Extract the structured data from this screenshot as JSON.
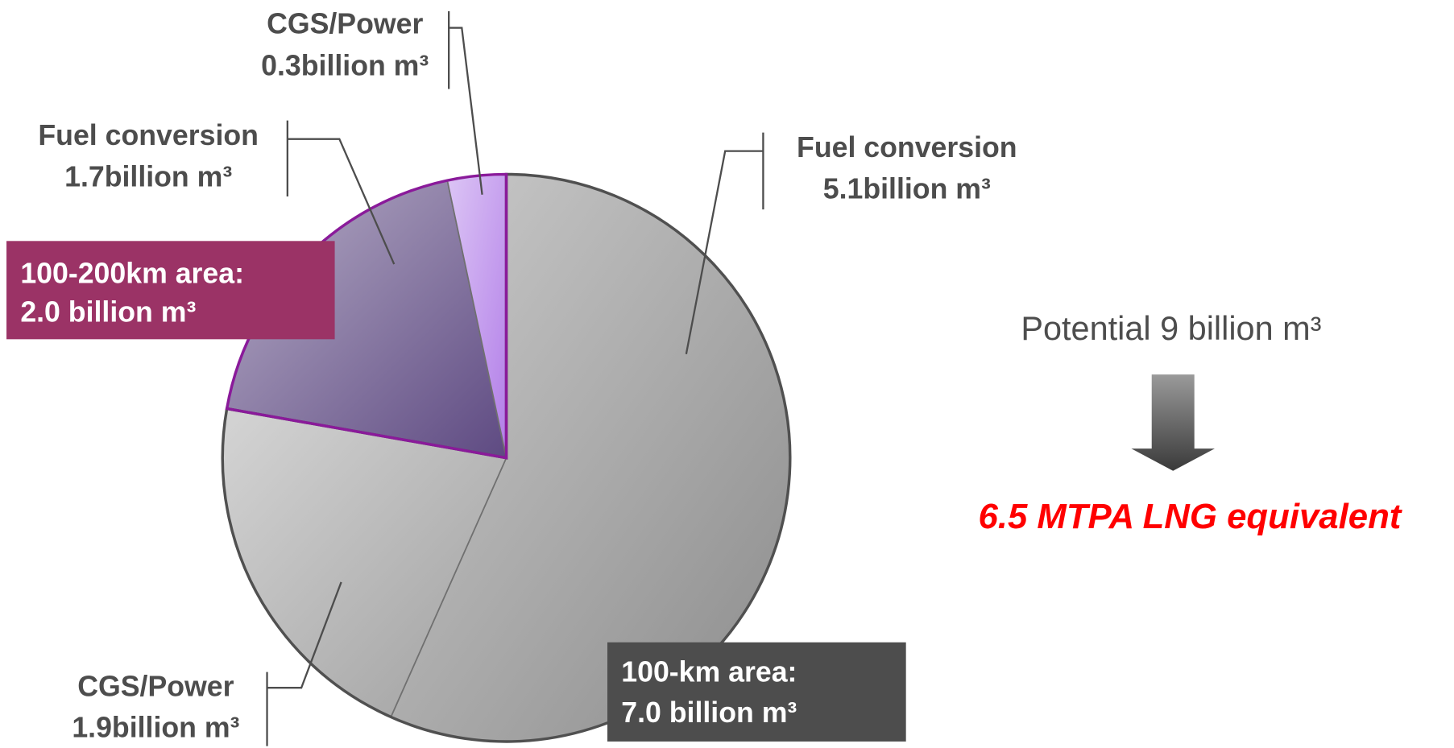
{
  "chart_data": {
    "type": "pie",
    "categories": [
      "Fuel conversion",
      "CGS/Power",
      "Fuel conversion",
      "CGS/Power"
    ],
    "values": [
      5.1,
      1.9,
      1.7,
      0.3
    ],
    "value_labels": [
      "5.1billion m³",
      "1.9billion m³",
      "1.7billion m³",
      "0.3billion m³"
    ],
    "colors": [
      "#8c8c8c",
      "#a0a0a0",
      "#5e4a82",
      "#b27ee8"
    ],
    "groups": [
      {
        "label": "100-km area:",
        "value": 7.0,
        "value_label": "7.0 billion m³",
        "color": "#4d4d4d"
      },
      {
        "label": "100-200km area:",
        "value": 2.0,
        "value_label": "2.0 billion m³",
        "color": "#9b3366"
      }
    ],
    "annotations": [
      "Potential 9 billion m³",
      "6.5 MTPA LNG equivalent"
    ]
  }
}
